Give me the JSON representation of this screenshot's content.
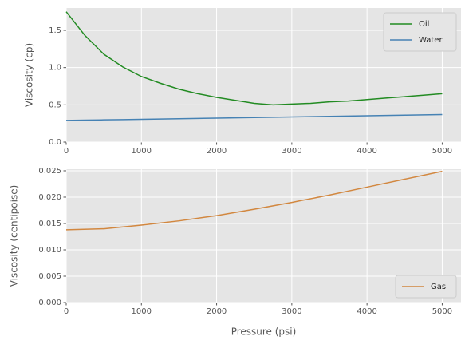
{
  "chart_data": [
    {
      "type": "line",
      "ylabel": "Viscosity (cp)",
      "x": [
        0,
        250,
        500,
        750,
        1000,
        1250,
        1500,
        1750,
        2000,
        2250,
        2500,
        2750,
        3000,
        3250,
        3500,
        3750,
        4000,
        4250,
        4500,
        4750,
        5000
      ],
      "series": [
        {
          "name": "Oil",
          "color": "#228b22",
          "values": [
            1.75,
            1.43,
            1.18,
            1.01,
            0.88,
            0.79,
            0.71,
            0.65,
            0.6,
            0.56,
            0.52,
            0.5,
            0.51,
            0.52,
            0.54,
            0.55,
            0.57,
            0.59,
            0.61,
            0.63,
            0.65
          ]
        },
        {
          "name": "Water",
          "color": "#4682b4",
          "values": [
            0.29,
            0.294,
            0.298,
            0.302,
            0.306,
            0.31,
            0.314,
            0.318,
            0.322,
            0.326,
            0.33,
            0.334,
            0.338,
            0.342,
            0.346,
            0.35,
            0.354,
            0.358,
            0.362,
            0.366,
            0.37
          ]
        }
      ],
      "xlim": [
        0,
        5250
      ],
      "xticks": [
        0,
        1000,
        2000,
        3000,
        4000,
        5000
      ],
      "ylim": [
        0,
        1.8
      ],
      "yticks": [
        {
          "value": 0,
          "label": "0.0"
        },
        0.5,
        {
          "value": 1,
          "label": "1.0"
        },
        1.5
      ],
      "grid": true,
      "legend": "upper right"
    },
    {
      "type": "line",
      "xlabel": "Pressure (psi)",
      "ylabel": "Viscosity (centipoise)",
      "x": [
        0,
        500,
        1000,
        1500,
        2000,
        2500,
        3000,
        3500,
        4000,
        4500,
        5000
      ],
      "series": [
        {
          "name": "Gas",
          "color": "#d2873f",
          "values": [
            0.0138,
            0.014,
            0.0147,
            0.0155,
            0.0165,
            0.0177,
            0.019,
            0.0204,
            0.0219,
            0.0234,
            0.0249
          ]
        }
      ],
      "xlim": [
        0,
        5250
      ],
      "xticks": [
        0,
        1000,
        2000,
        3000,
        4000,
        5000
      ],
      "ylim": [
        0,
        0.0253
      ],
      "yticks": [
        {
          "value": 0,
          "label": "0.000"
        },
        0.005,
        {
          "value": 0.01,
          "label": "0.010"
        },
        0.015,
        {
          "value": 0.02,
          "label": "0.020"
        },
        0.025
      ],
      "grid": true,
      "legend": "lower right"
    }
  ]
}
